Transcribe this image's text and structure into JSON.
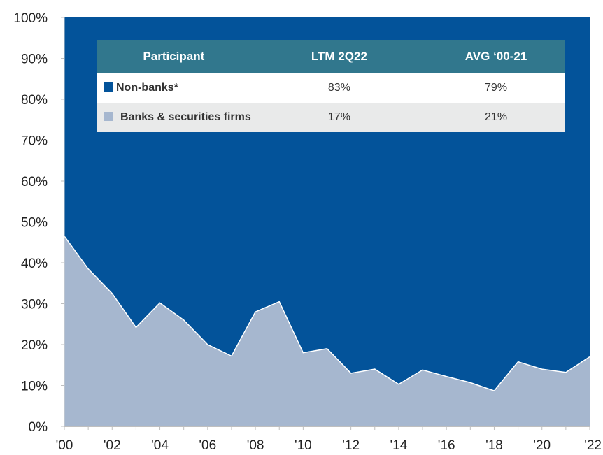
{
  "chart_data": {
    "type": "area",
    "stacked": true,
    "percent_stacked": true,
    "x": [
      "'00",
      "'01",
      "'02",
      "'03",
      "'04",
      "'05",
      "'06",
      "'07",
      "'08",
      "'09",
      "'10",
      "'11",
      "'12",
      "'13",
      "'14",
      "'15",
      "'16",
      "'17",
      "'18",
      "'19",
      "'20",
      "'21",
      "'22"
    ],
    "x_tick_labels": [
      "'00",
      "'02",
      "'04",
      "'06",
      "'08",
      "'10",
      "'12",
      "'14",
      "'16",
      "'18",
      "'20",
      "'22"
    ],
    "series": [
      {
        "name": "Banks & securities firms",
        "values": [
          46.5,
          38.5,
          32.5,
          24.2,
          30.2,
          26.0,
          20.0,
          17.2,
          28.0,
          30.5,
          18.0,
          19.0,
          13.0,
          14.0,
          10.3,
          13.8,
          12.2,
          10.7,
          8.7,
          15.8,
          14.0,
          13.2,
          17.0
        ],
        "color": "#a6b7cf"
      },
      {
        "name": "Non-banks*",
        "values": [
          53.5,
          61.5,
          67.5,
          75.8,
          69.8,
          74.0,
          80.0,
          82.8,
          72.0,
          69.5,
          82.0,
          81.0,
          87.0,
          86.0,
          89.7,
          86.2,
          87.8,
          89.3,
          91.3,
          84.2,
          86.0,
          86.8,
          83.0
        ],
        "color": "#03539a"
      }
    ],
    "y_ticks": [
      0,
      10,
      20,
      30,
      40,
      50,
      60,
      70,
      80,
      90,
      100
    ],
    "y_tick_labels": [
      "0%",
      "10%",
      "20%",
      "30%",
      "40%",
      "50%",
      "60%",
      "70%",
      "80%",
      "90%",
      "100%"
    ],
    "ylim": [
      0,
      100
    ],
    "grid": false,
    "legend": "table-top",
    "table": {
      "headers": [
        "Participant",
        "LTM 2Q22",
        "AVG ‘00-21"
      ],
      "rows": [
        {
          "participant": "Non-banks*",
          "ltm": "83%",
          "avg": "79%",
          "color": "#03539a"
        },
        {
          "participant": "Banks & securities firms",
          "ltm": "17%",
          "avg": "21%",
          "color": "#a6b7cf"
        }
      ]
    }
  }
}
